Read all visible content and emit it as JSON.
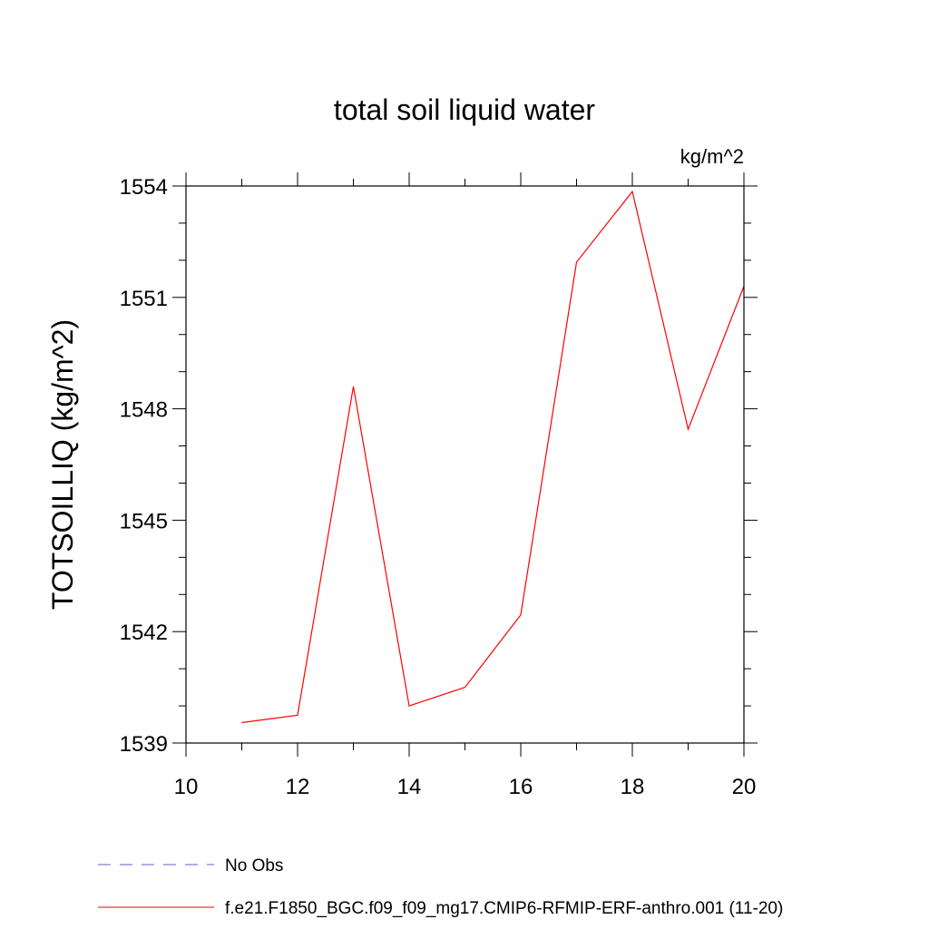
{
  "chart_data": {
    "type": "line",
    "title": "total soil liquid water",
    "units": "kg/m^2",
    "ylabel": "TOTSOILLIQ  (kg/m^2)",
    "xlabel": "",
    "xlim": [
      10,
      20
    ],
    "ylim": [
      1539,
      1554
    ],
    "x_ticks": [
      10,
      12,
      14,
      16,
      18,
      20
    ],
    "x_tick_labels": [
      "10",
      "12",
      "14",
      "16",
      "18",
      "20"
    ],
    "y_ticks": [
      1539,
      1542,
      1545,
      1548,
      1551,
      1554
    ],
    "y_tick_labels": [
      "1539",
      "1542",
      "1545",
      "1548",
      "1551",
      "1554"
    ],
    "x_minor_step": 1,
    "y_minor_step": 1,
    "grid": false,
    "legend_position": "bottom-left",
    "series": [
      {
        "name": "f.e21.F1850_BGC.f09_f09_mg17.CMIP6-RFMIP-ERF-anthro.001 (11-20)",
        "color": "#ff0000",
        "dash": "solid",
        "x": [
          11,
          12,
          13,
          14,
          15,
          16,
          17,
          18,
          19,
          20
        ],
        "y": [
          1539.55,
          1539.75,
          1548.6,
          1540.0,
          1540.5,
          1542.45,
          1551.95,
          1553.85,
          1547.45,
          1551.3
        ]
      }
    ],
    "legend": [
      {
        "label": "No Obs",
        "color": "#6a5acd",
        "dash": "dashed"
      },
      {
        "label": "f.e21.F1850_BGC.f09_f09_mg17.CMIP6-RFMIP-ERF-anthro.001 (11-20)",
        "color": "#ff0000",
        "dash": "solid"
      }
    ]
  }
}
